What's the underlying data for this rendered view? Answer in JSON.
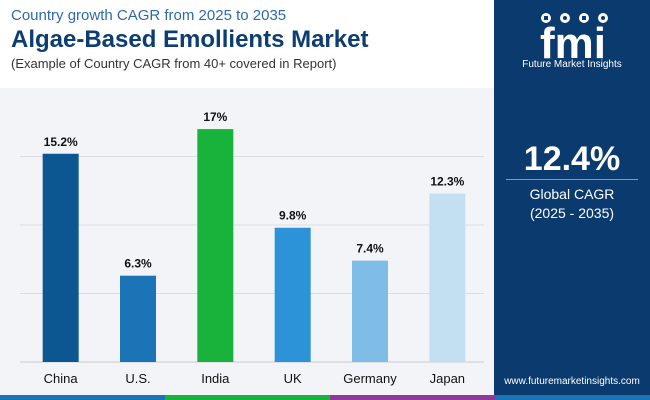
{
  "header": {
    "subtitle": "Country growth CAGR from 2025 to 2035",
    "title": "Algae-Based Emollients Market",
    "note": "(Example of Country CAGR from 40+ covered in Report)"
  },
  "sidebar": {
    "brand_caption": "Future Market Insights",
    "global_cagr": "12.4%",
    "global_cagr_label": "Global CAGR",
    "period": "(2025 - 2035)",
    "website": "www.futuremarketinsights.com"
  },
  "chart_data": {
    "type": "bar",
    "title": "Algae-Based Emollients Market",
    "subtitle": "Country growth CAGR from 2025 to 2035",
    "xlabel": "",
    "ylabel": "",
    "unit": "%",
    "ylim": [
      0,
      20
    ],
    "grid": true,
    "legend": "none",
    "categories": [
      "China",
      "U.S.",
      "India",
      "UK",
      "Germany",
      "Japan"
    ],
    "values": [
      15.2,
      6.3,
      17,
      9.8,
      7.4,
      12.3
    ],
    "labels": [
      "15.2%",
      "6.3%",
      "17%",
      "9.8%",
      "7.4%",
      "12.3%"
    ],
    "colors": [
      "#0c5691",
      "#1b74b5",
      "#17b33a",
      "#2d93d9",
      "#7fbde6",
      "#c3e0f3"
    ]
  },
  "colors": {
    "sidebar_bg": "#0b3a6e",
    "title": "#0d3d73",
    "stripe": [
      "#1b74b5",
      "#17b33a",
      "#8e3a9c",
      "#1b74b5"
    ]
  }
}
